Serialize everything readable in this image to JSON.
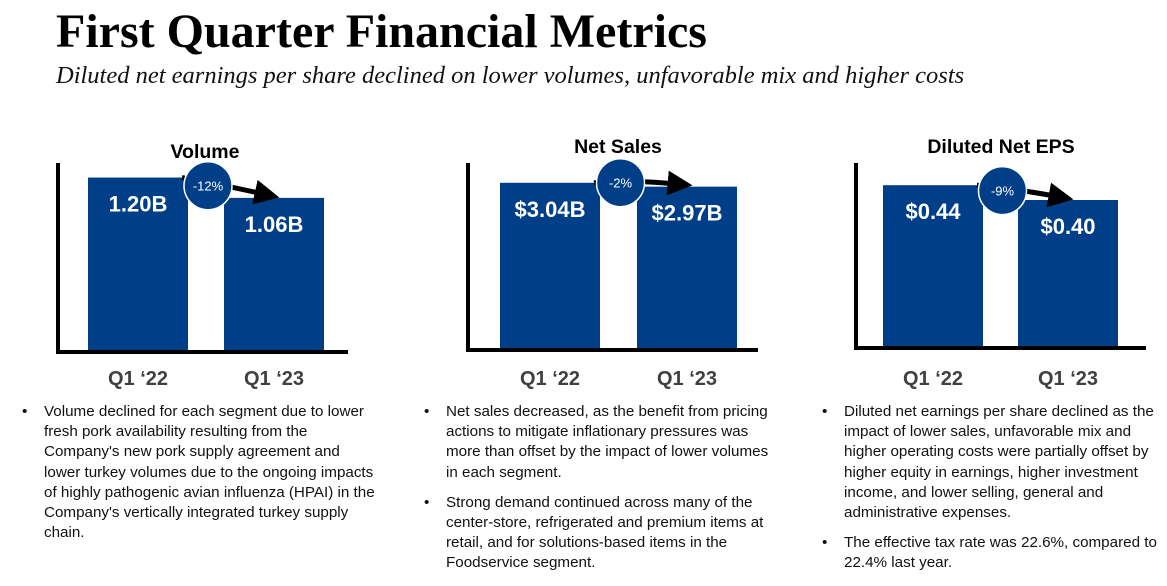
{
  "page": {
    "title": "First Quarter Financial Metrics",
    "subtitle": "Diluted net earnings per share declined on lower volumes, unfavorable mix and higher costs"
  },
  "colors": {
    "bar": "#003f87",
    "axis": "#000000",
    "arrow": "#000000",
    "category_label": "#404040"
  },
  "chart_data": [
    {
      "type": "bar",
      "title": "Volume",
      "categories": [
        "Q1 ‘22",
        "Q1 ‘23"
      ],
      "values": [
        1.2,
        1.06
      ],
      "value_labels": [
        "1.20B",
        "1.06B"
      ],
      "change_label": "-12%",
      "ylim": [
        0,
        1.3
      ]
    },
    {
      "type": "bar",
      "title": "Net Sales",
      "categories": [
        "Q1 ‘22",
        "Q1 ‘23"
      ],
      "values": [
        3.04,
        2.97
      ],
      "value_labels": [
        "$3.04B",
        "$2.97B"
      ],
      "change_label": "-2%",
      "ylim": [
        0,
        3.4
      ]
    },
    {
      "type": "bar",
      "title": "Diluted Net EPS",
      "categories": [
        "Q1 ‘22",
        "Q1 ‘23"
      ],
      "values": [
        0.44,
        0.4
      ],
      "value_labels": [
        "$0.44",
        "$0.40"
      ],
      "change_label": "-9%",
      "ylim": [
        0,
        0.5
      ]
    }
  ],
  "notes": [
    [
      "Volume declined for each segment due to lower fresh pork availability resulting from the Company's new pork supply agreement and lower turkey volumes due to the ongoing impacts of highly pathogenic avian influenza (HPAI) in the Company's vertically integrated turkey supply chain."
    ],
    [
      "Net sales decreased, as the benefit from pricing actions to mitigate inflationary pressures was more than offset by the impact of lower volumes in each segment.",
      "Strong demand continued across many of the center-store, refrigerated and premium items at retail, and for solutions-based items in the Foodservice segment."
    ],
    [
      "Diluted net earnings per share declined as the impact of lower sales, unfavorable mix and higher operating costs were partially offset by higher equity in earnings, higher investment income, and lower selling, general and administrative expenses.",
      "The effective tax rate was 22.6%, compared to 22.4% last year."
    ]
  ]
}
